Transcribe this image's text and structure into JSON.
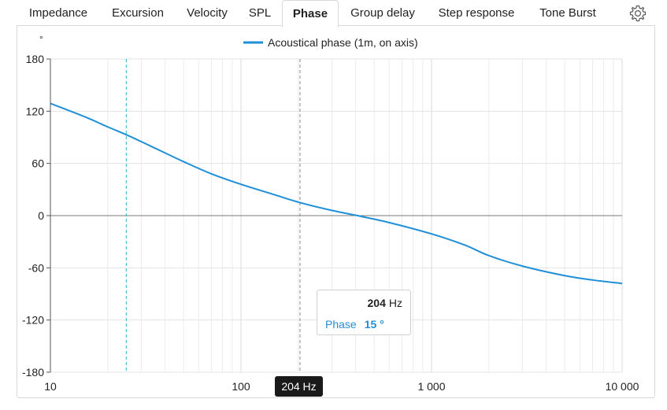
{
  "tabs": [
    {
      "label": "Impedance",
      "active": false
    },
    {
      "label": "Excursion",
      "active": false
    },
    {
      "label": "Velocity",
      "active": false
    },
    {
      "label": "SPL",
      "active": false
    },
    {
      "label": "Phase",
      "active": true
    },
    {
      "label": "Group delay",
      "active": false
    },
    {
      "label": "Step response",
      "active": false
    },
    {
      "label": "Tone Burst",
      "active": false
    }
  ],
  "settings_icon": "gear-icon",
  "chart_data": {
    "type": "line",
    "y_unit": "°",
    "xscale": "log",
    "xlim": [
      10,
      10000
    ],
    "ylim": [
      -180,
      180
    ],
    "x_ticks": [
      10,
      100,
      1000,
      10000
    ],
    "x_tick_labels": [
      "10",
      "100",
      "1 000",
      "10 000"
    ],
    "y_ticks": [
      180,
      120,
      60,
      0,
      -60,
      -120,
      -180
    ],
    "y_tick_labels": [
      "180",
      "120",
      "60",
      "0",
      "-60",
      "-120",
      "-180"
    ],
    "grid": true,
    "legend_position": "top-center",
    "series": [
      {
        "name": "Acoustical phase (1m, on axis)",
        "color": "#1f8fd8",
        "x": [
          10,
          15,
          20,
          25,
          30,
          40,
          50,
          70,
          100,
          150,
          204,
          300,
          430,
          600,
          1000,
          1500,
          2000,
          3000,
          5000,
          7000,
          10000
        ],
        "y": [
          129,
          114,
          102,
          93,
          85,
          72,
          62,
          48,
          36,
          24,
          15,
          6,
          -1,
          -8,
          -21,
          -34,
          -46,
          -58,
          -69,
          -74,
          -78
        ]
      }
    ],
    "markers": [
      {
        "x": 25,
        "style": "dashed",
        "color": "#2ab0c5"
      },
      {
        "x": 204,
        "style": "dashed",
        "color": "#8a8a8a"
      }
    ]
  },
  "tooltip": {
    "freq": "204",
    "freq_unit": "Hz",
    "label": "Phase",
    "value": "15 °"
  },
  "cursor_label": "204 Hz"
}
